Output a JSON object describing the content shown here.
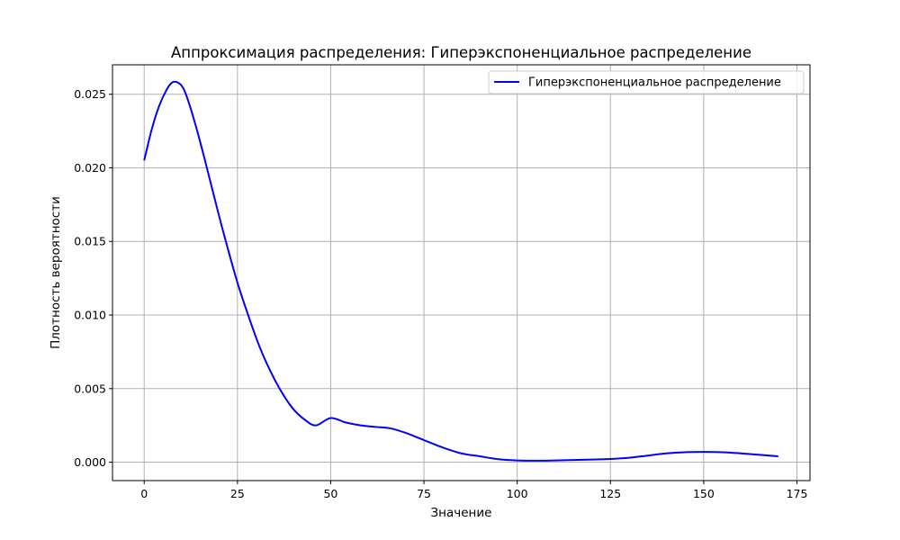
{
  "chart_data": {
    "type": "line",
    "title": "Аппроксимация распределения: Гиперэкспоненциальное распределение",
    "xlabel": "Значение",
    "ylabel": "Плотность вероятности",
    "xlim": [
      -8.5,
      178.5
    ],
    "ylim": [
      -0.00125,
      0.027
    ],
    "xticks": [
      0,
      25,
      50,
      75,
      100,
      125,
      150,
      175
    ],
    "xtick_labels": [
      "0",
      "25",
      "50",
      "75",
      "100",
      "125",
      "150",
      "175"
    ],
    "yticks": [
      0.0,
      0.005,
      0.01,
      0.015,
      0.02,
      0.025
    ],
    "ytick_labels": [
      "0.000",
      "0.005",
      "0.010",
      "0.015",
      "0.020",
      "0.025"
    ],
    "grid": true,
    "legend_position": "top-right",
    "series": [
      {
        "name": "Гиперэкспоненциальное распределение",
        "color": "#0000ff",
        "x": [
          0,
          2,
          4,
          6,
          7.5,
          9,
          10.5,
          12,
          14,
          16,
          18,
          20,
          22,
          25,
          28,
          31,
          34,
          37,
          40,
          43,
          46,
          50,
          54,
          58,
          62,
          66,
          70,
          75,
          80,
          85,
          90,
          95,
          100,
          105,
          110,
          115,
          120,
          125,
          130,
          135,
          140,
          145,
          150,
          155,
          160,
          165,
          170
        ],
        "y": [
          0.0205,
          0.0226,
          0.0242,
          0.0253,
          0.0258,
          0.0258,
          0.0254,
          0.0244,
          0.0227,
          0.0208,
          0.0188,
          0.0168,
          0.0149,
          0.0122,
          0.0099,
          0.0078,
          0.0061,
          0.0047,
          0.0036,
          0.0029,
          0.0025,
          0.003,
          0.0027,
          0.0025,
          0.0024,
          0.0023,
          0.002,
          0.0015,
          0.001,
          0.0006,
          0.0004,
          0.0002,
          0.00012,
          0.0001,
          0.00012,
          0.00015,
          0.00018,
          0.00022,
          0.0003,
          0.00045,
          0.0006,
          0.00068,
          0.0007,
          0.00068,
          0.0006,
          0.0005,
          0.0004
        ]
      }
    ]
  }
}
